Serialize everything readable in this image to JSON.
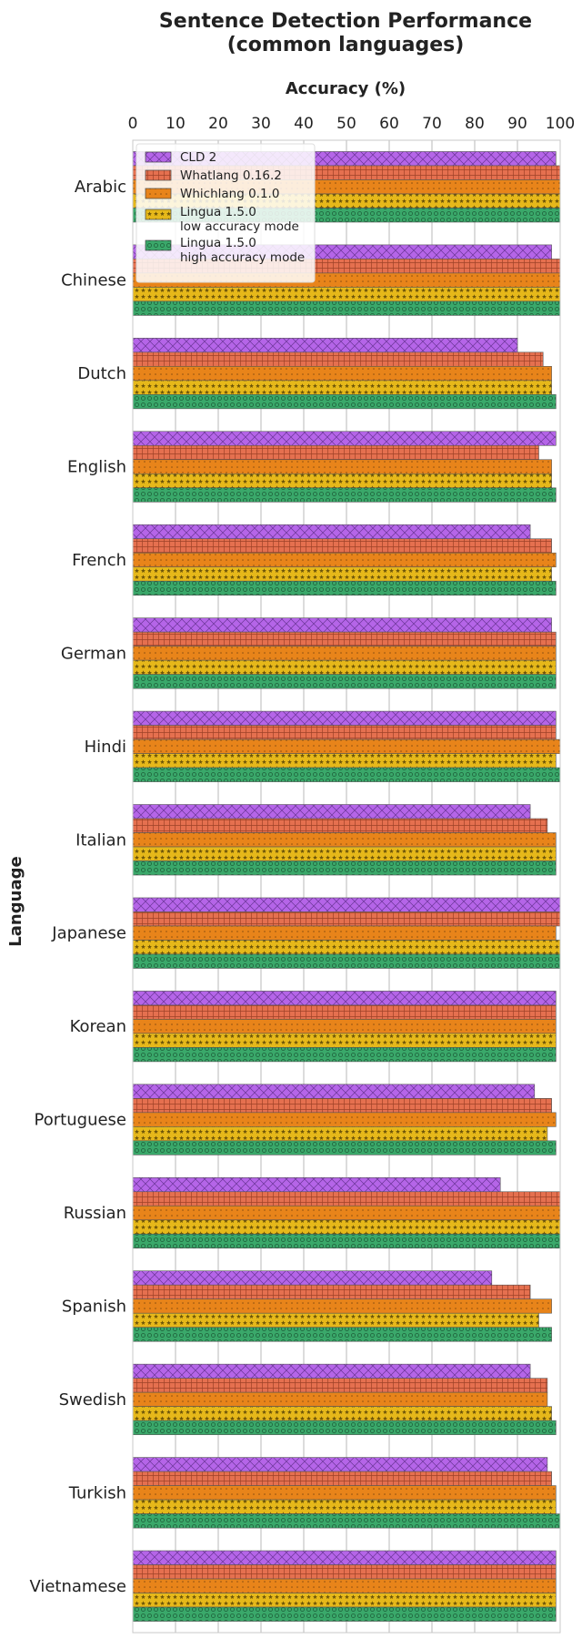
{
  "chart_data": {
    "type": "bar",
    "orientation": "horizontal",
    "title_line1": "Sentence Detection Performance",
    "title_line2": "(common languages)",
    "xlabel": "Accuracy (%)",
    "ylabel": "Language",
    "xlim": [
      0,
      100
    ],
    "xticks": [
      0,
      10,
      20,
      30,
      40,
      50,
      60,
      70,
      80,
      90,
      100
    ],
    "grid": true,
    "legend_position": "top-left",
    "categories": [
      "Arabic",
      "Chinese",
      "Dutch",
      "English",
      "French",
      "German",
      "Hindi",
      "Italian",
      "Japanese",
      "Korean",
      "Portuguese",
      "Russian",
      "Spanish",
      "Swedish",
      "Turkish",
      "Vietnamese"
    ],
    "series": [
      {
        "name": "CLD 2",
        "color": "#b565e8",
        "pattern": "crosshatch",
        "values": [
          99,
          98,
          90,
          99,
          93,
          98,
          99,
          93,
          100,
          99,
          94,
          86,
          84,
          93,
          97,
          99
        ]
      },
      {
        "name": "Whatlang 0.16.2",
        "color": "#e5704f",
        "pattern": "grid",
        "values": [
          100,
          100,
          96,
          95,
          98,
          99,
          99,
          97,
          100,
          99,
          98,
          100,
          93,
          97,
          98,
          99
        ]
      },
      {
        "name": "Whichlang 0.1.0",
        "color": "#e8841a",
        "pattern": "dots",
        "values": [
          100,
          100,
          98,
          98,
          99,
          99,
          100,
          99,
          99,
          99,
          99,
          100,
          98,
          97,
          99,
          99
        ]
      },
      {
        "name": "Lingua 1.5.0\nlow accuracy mode",
        "color": "#e6b81a",
        "pattern": "stars",
        "values": [
          100,
          100,
          98,
          98,
          98,
          99,
          99,
          99,
          100,
          99,
          97,
          100,
          95,
          98,
          99,
          99
        ]
      },
      {
        "name": "Lingua 1.5.0\nhigh accuracy mode",
        "color": "#3aa86a",
        "pattern": "circles",
        "values": [
          100,
          100,
          99,
          99,
          99,
          99,
          100,
          99,
          100,
          99,
          99,
          100,
          98,
          99,
          100,
          99
        ]
      }
    ]
  }
}
